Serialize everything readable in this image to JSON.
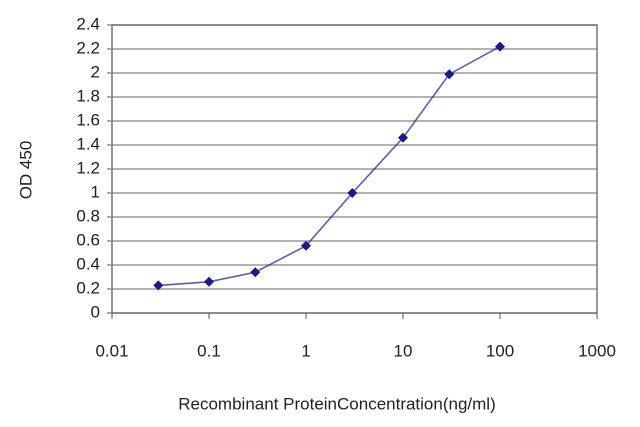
{
  "chart_data": {
    "type": "line",
    "log_x": true,
    "grid": true,
    "x_label": "Recombinant ProteinConcentration(ng/ml)",
    "y_label": "OD 450",
    "x": [
      0.03,
      0.1,
      0.3,
      1,
      3,
      10,
      30,
      100
    ],
    "series": [
      {
        "name": "OD 450",
        "color": "#1a1a8c",
        "values": [
          0.23,
          0.26,
          0.34,
          0.56,
          1.0,
          1.46,
          1.99,
          2.22
        ]
      }
    ],
    "xlim": [
      0.01,
      1000
    ],
    "xticks": [
      0.01,
      0.1,
      1,
      10,
      100,
      1000
    ],
    "ylim": [
      0,
      2.4
    ],
    "yticks": [
      0,
      0.2,
      0.4,
      0.6,
      0.8,
      1,
      1.2,
      1.4,
      1.6,
      1.8,
      2,
      2.2,
      2.4
    ]
  }
}
